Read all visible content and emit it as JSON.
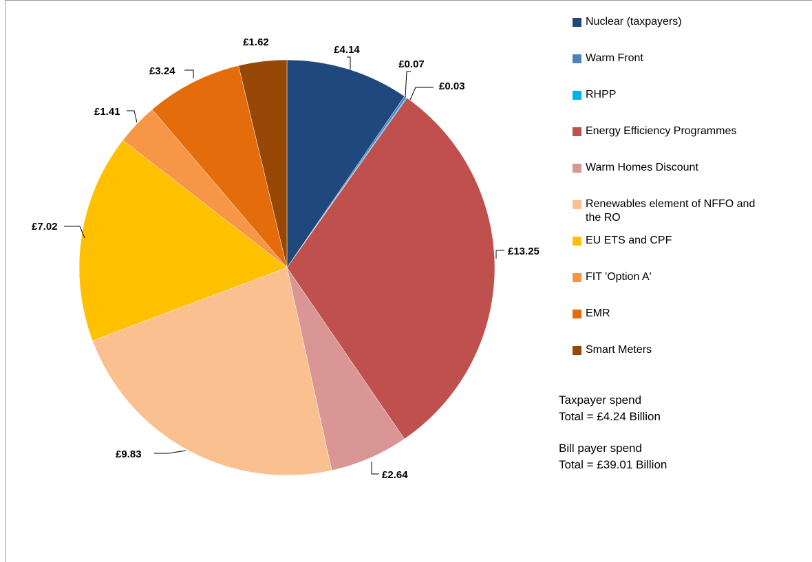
{
  "chart_data": {
    "type": "pie",
    "title": "",
    "unit": "£ Billion",
    "categories": [
      "Nuclear (taxpayers)",
      "Warm Front",
      "RHPP",
      "Energy Efficiency Programmes",
      "Warm Homes Discount",
      "Renewables element of NFFO and the RO",
      "EU ETS and CPF",
      "FIT 'Option A'",
      "EMR",
      "Smart Meters"
    ],
    "values": [
      4.14,
      0.07,
      0.03,
      13.25,
      2.64,
      9.83,
      7.02,
      1.41,
      3.24,
      1.62
    ],
    "data_labels": [
      "£4.14",
      "£0.07",
      "£0.03",
      "£13.25",
      "£2.64",
      "£9.83",
      "£7.02",
      "£1.41",
      "£3.24",
      "£1.62"
    ],
    "colors": [
      "#1F497D",
      "#4F81BD",
      "#00B0F0",
      "#C0504D",
      "#D99694",
      "#FAC090",
      "#FFC000",
      "#F79646",
      "#E46C0A",
      "#974806"
    ],
    "legend_position": "right"
  },
  "totals": {
    "taxpayer_title": "Taxpayer spend",
    "taxpayer_total": "Total = £4.24 Billion",
    "billpayer_title": "Bill payer spend",
    "billpayer_total": "Total = £39.01 Billion"
  }
}
